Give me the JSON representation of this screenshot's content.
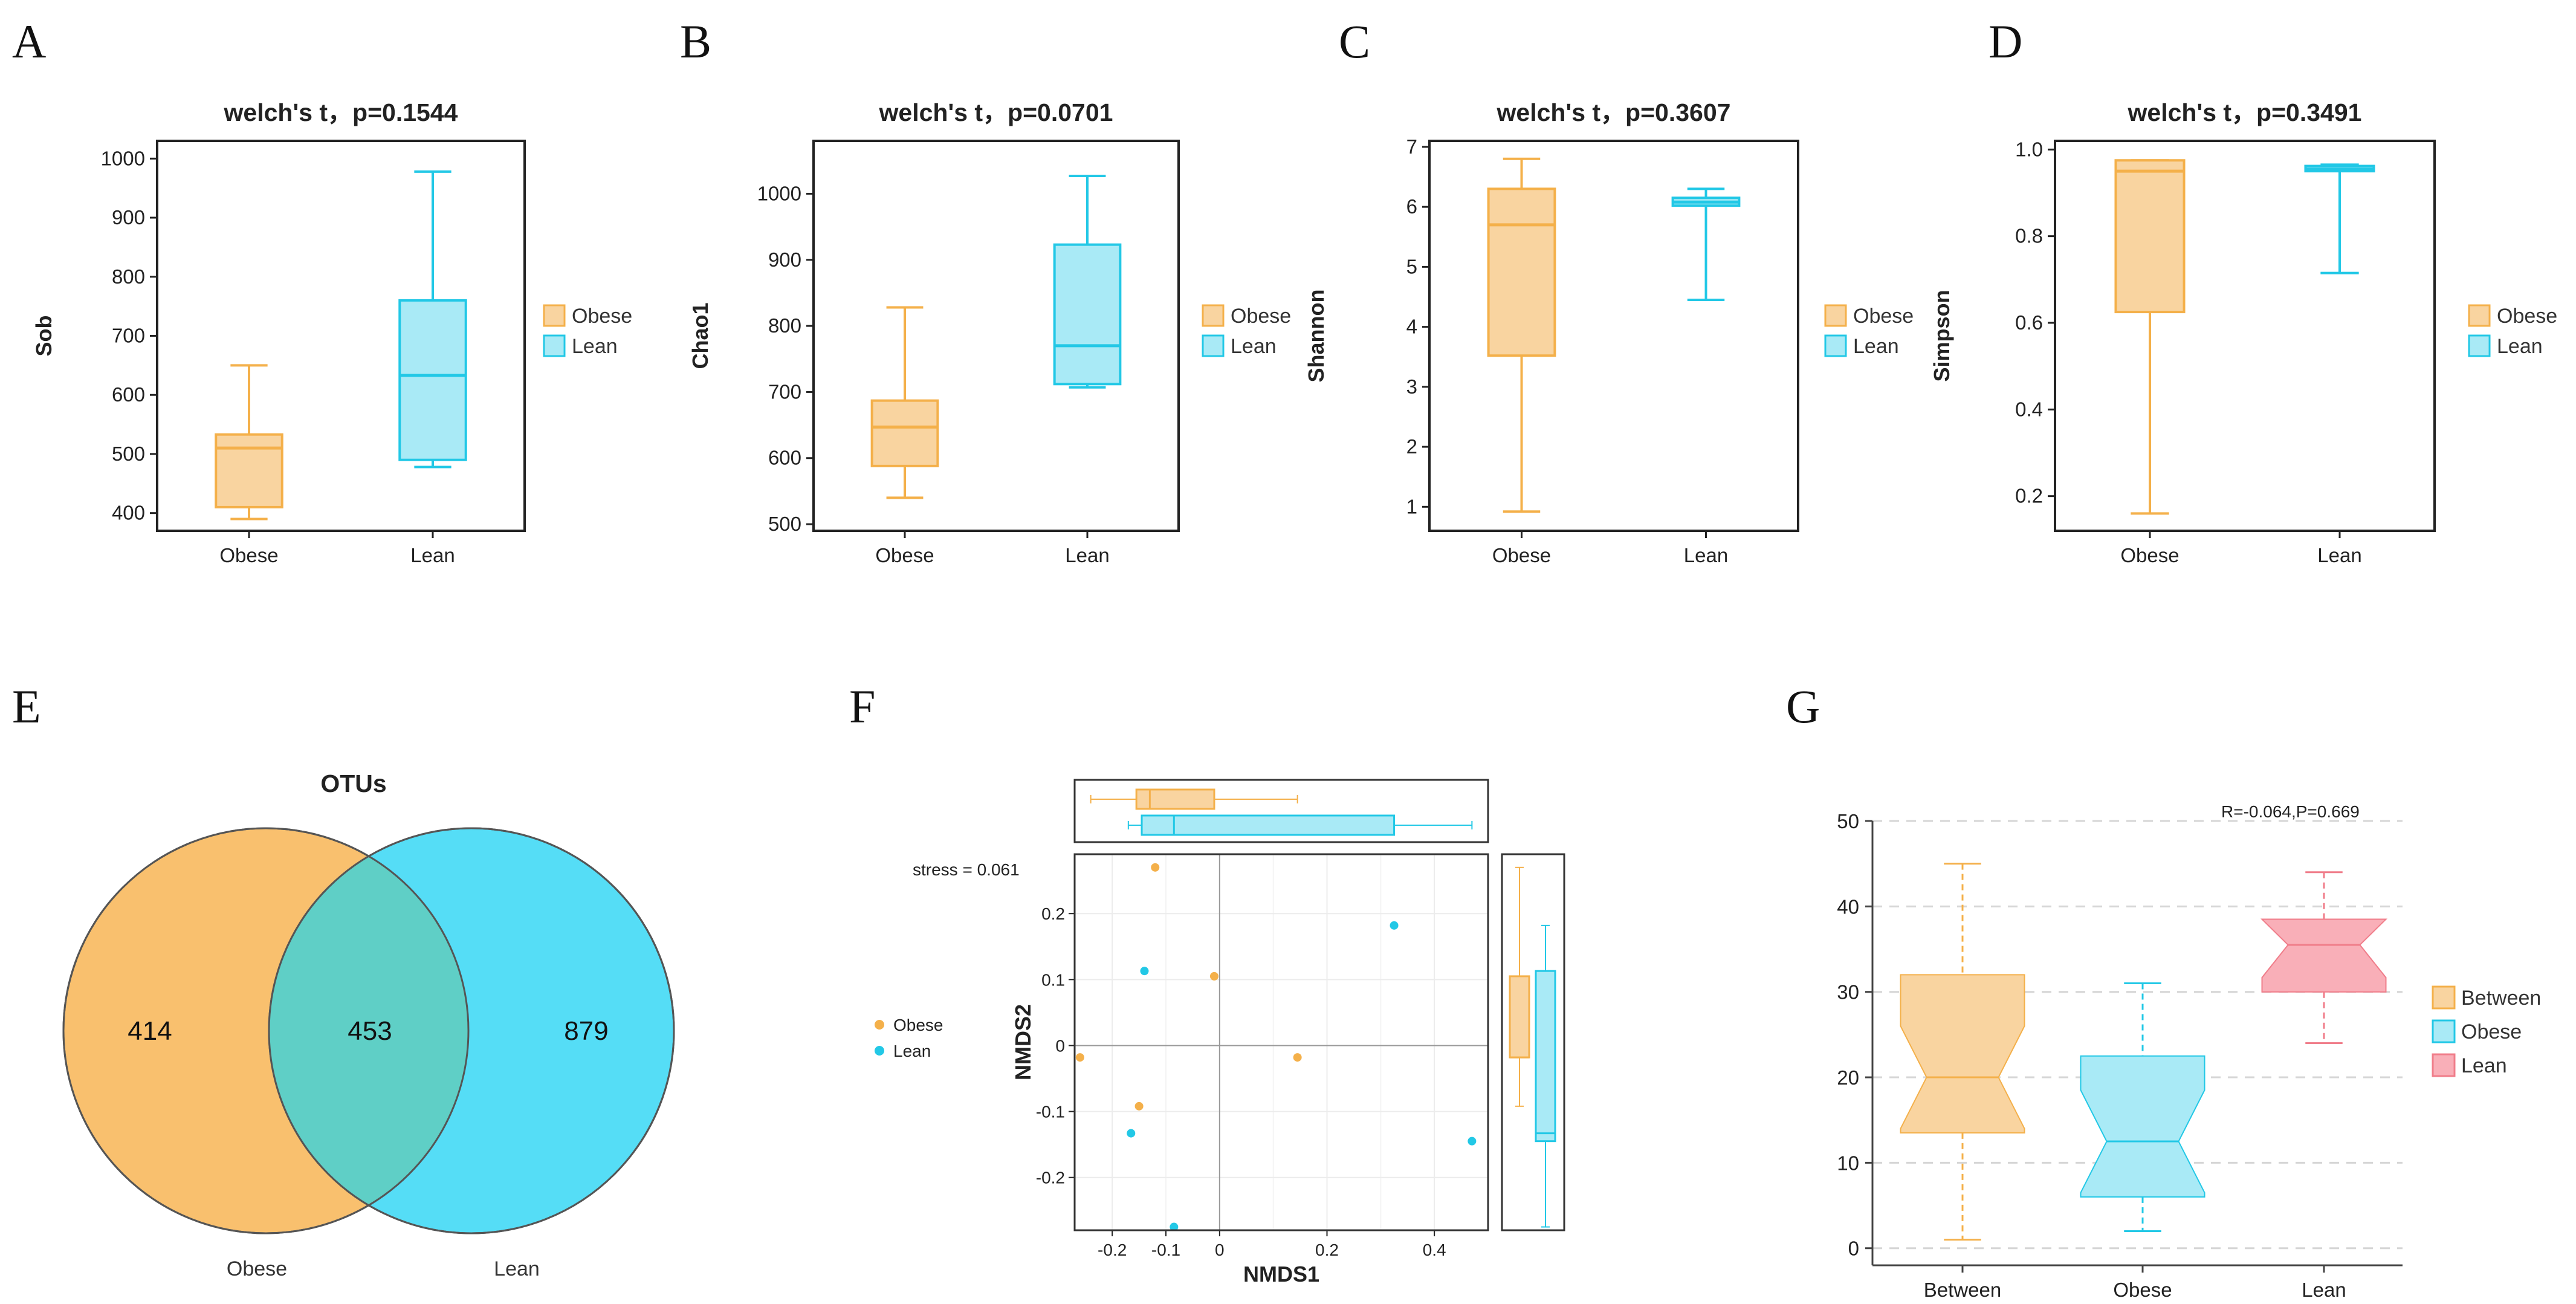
{
  "colors": {
    "obese_stroke": "#F4B04A",
    "obese_fill": "#F9D4A0",
    "lean_stroke": "#22C8E6",
    "lean_fill": "#A9EAF6",
    "pink_stroke": "#F07D8A",
    "pink_fill": "#F9AFB8",
    "venn_obese": "#F9C06E",
    "venn_lean": "#55DDF6",
    "venn_overlap": "#5FCFC6"
  },
  "chart_data": [
    {
      "id": "A",
      "type": "box",
      "panel_label": "A",
      "title": "welch's t，p=0.1544",
      "ylabel": "Sob",
      "ylim": [
        370,
        1030
      ],
      "yticks": [
        "400",
        "500",
        "600",
        "700",
        "800",
        "900",
        "1000"
      ],
      "categories": [
        "Obese",
        "Lean"
      ],
      "legend": [
        "Obese",
        "Lean"
      ],
      "boxes": [
        {
          "name": "Obese",
          "min": 390,
          "q1": 410,
          "median": 510,
          "q3": 533,
          "max": 650
        },
        {
          "name": "Lean",
          "min": 478,
          "q1": 490,
          "median": 633,
          "q3": 760,
          "max": 978
        }
      ]
    },
    {
      "id": "B",
      "type": "box",
      "panel_label": "B",
      "title": "welch's t，p=0.0701",
      "ylabel": "Chao1",
      "ylim": [
        490,
        1080
      ],
      "yticks": [
        "500",
        "600",
        "700",
        "800",
        "900",
        "1000"
      ],
      "categories": [
        "Obese",
        "Lean"
      ],
      "legend": [
        "Obese",
        "Lean"
      ],
      "boxes": [
        {
          "name": "Obese",
          "min": 540,
          "q1": 588,
          "median": 647,
          "q3": 687,
          "max": 828
        },
        {
          "name": "Lean",
          "min": 707,
          "q1": 712,
          "median": 770,
          "q3": 923,
          "max": 1027
        }
      ]
    },
    {
      "id": "C",
      "type": "box",
      "panel_label": "C",
      "title": "welch's t，p=0.3607",
      "ylabel": "Shannon",
      "ylim": [
        0.6,
        7.1
      ],
      "yticks": [
        "1",
        "2",
        "3",
        "4",
        "5",
        "6",
        "7"
      ],
      "categories": [
        "Obese",
        "Lean"
      ],
      "legend": [
        "Obese",
        "Lean"
      ],
      "boxes": [
        {
          "name": "Obese",
          "min": 0.92,
          "q1": 3.52,
          "median": 5.7,
          "q3": 6.3,
          "max": 6.8
        },
        {
          "name": "Lean",
          "min": 4.45,
          "q1": 6.02,
          "median": 6.08,
          "q3": 6.15,
          "max": 6.3
        }
      ]
    },
    {
      "id": "D",
      "type": "box",
      "panel_label": "D",
      "title": "welch's t，p=0.3491",
      "ylabel": "Simpson",
      "ylim": [
        0.12,
        1.02
      ],
      "yticks": [
        "0.2",
        "0.4",
        "0.6",
        "0.8",
        "1.0"
      ],
      "categories": [
        "Obese",
        "Lean"
      ],
      "legend": [
        "Obese",
        "Lean"
      ],
      "boxes": [
        {
          "name": "Obese",
          "min": 0.16,
          "q1": 0.625,
          "median": 0.95,
          "q3": 0.975,
          "max": 0.975
        },
        {
          "name": "Lean",
          "min": 0.715,
          "q1": 0.95,
          "median": 0.955,
          "q3": 0.962,
          "max": 0.965
        }
      ]
    },
    {
      "id": "E",
      "type": "venn",
      "panel_label": "E",
      "title": "OTUs",
      "sets": [
        "Obese",
        "Lean"
      ],
      "only_obese": 414,
      "shared": 453,
      "only_lean": 879
    },
    {
      "id": "F",
      "type": "scatter",
      "panel_label": "F",
      "annotation": "stress = 0.061",
      "xlabel": "NMDS1",
      "ylabel": "NMDS2",
      "xlim": [
        -0.27,
        0.5
      ],
      "ylim": [
        -0.28,
        0.29
      ],
      "xticks": [
        "-0.2",
        "-0.1",
        "0",
        "0.2",
        "0.4"
      ],
      "yticks": [
        "0.2",
        "0.1",
        "0",
        "-0.1",
        "-0.2"
      ],
      "legend": [
        "Obese",
        "Lean"
      ],
      "series": [
        {
          "name": "Obese",
          "points": [
            [
              -0.12,
              0.27
            ],
            [
              -0.01,
              0.105
            ],
            [
              -0.26,
              -0.018
            ],
            [
              -0.15,
              -0.092
            ],
            [
              0.145,
              -0.018
            ]
          ]
        },
        {
          "name": "Lean",
          "points": [
            [
              -0.14,
              0.113
            ],
            [
              0.325,
              0.182
            ],
            [
              -0.165,
              -0.133
            ],
            [
              -0.085,
              -0.275
            ],
            [
              0.47,
              -0.145
            ]
          ]
        }
      ],
      "marginal_x": [
        {
          "name": "Obese",
          "min": -0.24,
          "q1": -0.155,
          "median": -0.13,
          "q3": -0.01,
          "max": 0.145
        },
        {
          "name": "Lean",
          "min": -0.17,
          "q1": -0.145,
          "median": -0.085,
          "q3": 0.325,
          "max": 0.47
        }
      ],
      "marginal_y": [
        {
          "name": "Obese",
          "min": -0.092,
          "q1": -0.018,
          "median": -0.018,
          "q3": 0.105,
          "max": 0.27
        },
        {
          "name": "Lean",
          "min": -0.275,
          "q1": -0.145,
          "median": -0.133,
          "q3": 0.113,
          "max": 0.182
        }
      ]
    },
    {
      "id": "G",
      "type": "box",
      "panel_label": "G",
      "annotation": "R=-0.064,P=0.669",
      "ylim": [
        -2,
        50
      ],
      "grid": true,
      "yticks": [
        "0",
        "10",
        "20",
        "30",
        "40",
        "50"
      ],
      "categories": [
        "Between",
        "Obese",
        "Lean"
      ],
      "legend": [
        "Between",
        "Obese",
        "Lean"
      ],
      "boxes": [
        {
          "name": "Between",
          "min": 1,
          "q1": 13.5,
          "median": 20,
          "q3": 32,
          "max": 45
        },
        {
          "name": "Obese",
          "min": 2,
          "q1": 6,
          "median": 12.5,
          "q3": 22.5,
          "max": 31
        },
        {
          "name": "Lean",
          "min": 24,
          "q1": 30,
          "median": 35.5,
          "q3": 38.5,
          "max": 44
        }
      ]
    }
  ]
}
